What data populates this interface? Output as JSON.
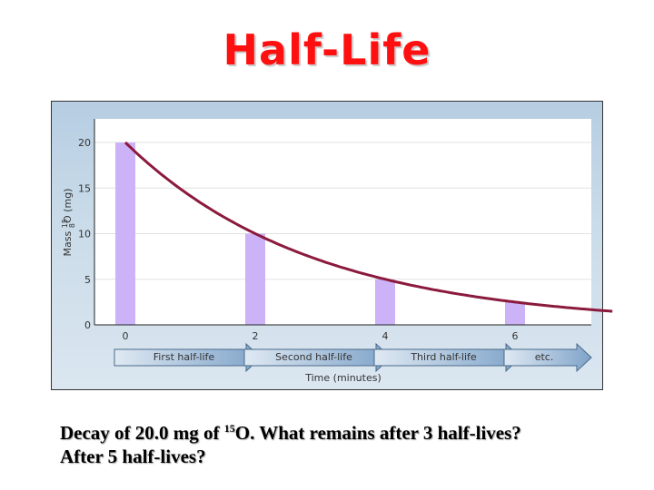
{
  "title": "Half-Life",
  "chart_data": {
    "type": "bar",
    "title": "Half-Life",
    "xlabel": "Time (minutes)",
    "ylabel": "Mass 15 8 O (mg)",
    "ylabel_parts": {
      "prefix": "Mass ",
      "mass_number": "15",
      "atomic_number": "8",
      "symbol": "O",
      "suffix": " (mg)"
    },
    "categories": [
      "0",
      "2",
      "4",
      "6"
    ],
    "values": [
      20,
      10,
      5,
      2.5
    ],
    "x": [
      0,
      2,
      4,
      6
    ],
    "ylim": [
      0,
      22
    ],
    "xlim": [
      -0.15,
      7.5
    ],
    "yticks": [
      "0",
      "5",
      "10",
      "15",
      "20"
    ],
    "xticks": [
      "0",
      "2",
      "4",
      "6"
    ],
    "grid": true,
    "bar_color": "#ccb3f7",
    "curve": {
      "name": "decay curve",
      "type": "line",
      "formula": "20 * 0.5^(t/2)",
      "x_start": 0,
      "x_end": 7.5,
      "color": "#8b1a3d"
    },
    "half_life_arrows": [
      "First half-life",
      "Second half-life",
      "Third half-life",
      "etc."
    ]
  },
  "caption": {
    "line1_pre": "Decay of 20.0 mg of ",
    "isotope_mass": "15",
    "line1_post": "O. What remains after 3 half-lives?",
    "line2": "After 5 half-lives?"
  }
}
